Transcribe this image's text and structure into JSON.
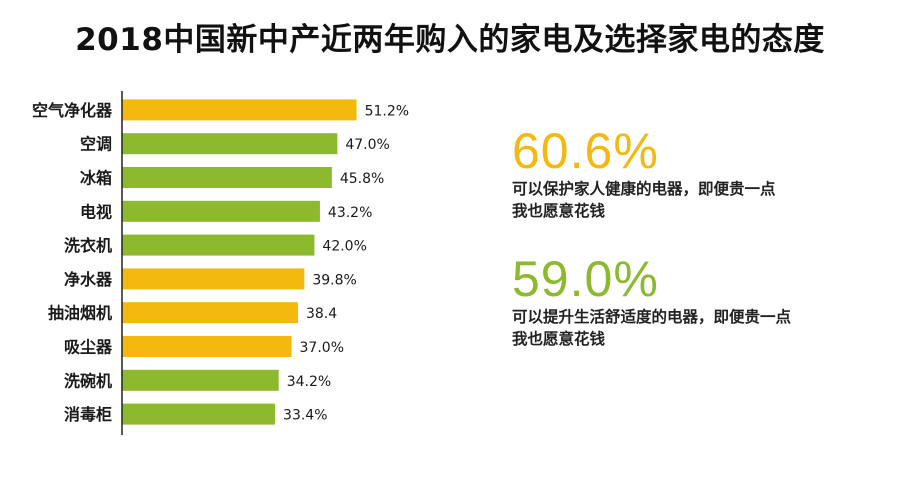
{
  "title": "2018中国新中产近两年购入的家电及选择家电的态度",
  "colors": {
    "yellow": "#F4B90F",
    "green": "#8DB92D",
    "axis": "#222222"
  },
  "chart_data": {
    "type": "bar",
    "orientation": "horizontal",
    "xlim": [
      0,
      55
    ],
    "categories": [
      "空气净化器",
      "空调",
      "冰箱",
      "电视",
      "洗衣机",
      "净水器",
      "抽油烟机",
      "吸尘器",
      "洗碗机",
      "消毒柜"
    ],
    "values": [
      51.2,
      47.0,
      45.8,
      43.2,
      42.0,
      39.8,
      38.4,
      37.0,
      34.2,
      33.4
    ],
    "value_labels": [
      "51.2%",
      "47.0%",
      "45.8%",
      "43.2%",
      "42.0%",
      "39.8%",
      "38.4",
      "37.0%",
      "34.2%",
      "33.4%"
    ],
    "bar_colors": [
      "yellow",
      "green",
      "green",
      "green",
      "green",
      "yellow",
      "yellow",
      "yellow",
      "green",
      "green"
    ]
  },
  "stats": [
    {
      "value": "60.6%",
      "color": "yellow",
      "line1": "可以保护家人健康的电器，即便贵一点",
      "line2": "我也愿意花钱"
    },
    {
      "value": "59.0%",
      "color": "green",
      "line1": "可以提升生活舒适度的电器，即便贵一点",
      "line2": "我也愿意花钱"
    }
  ]
}
